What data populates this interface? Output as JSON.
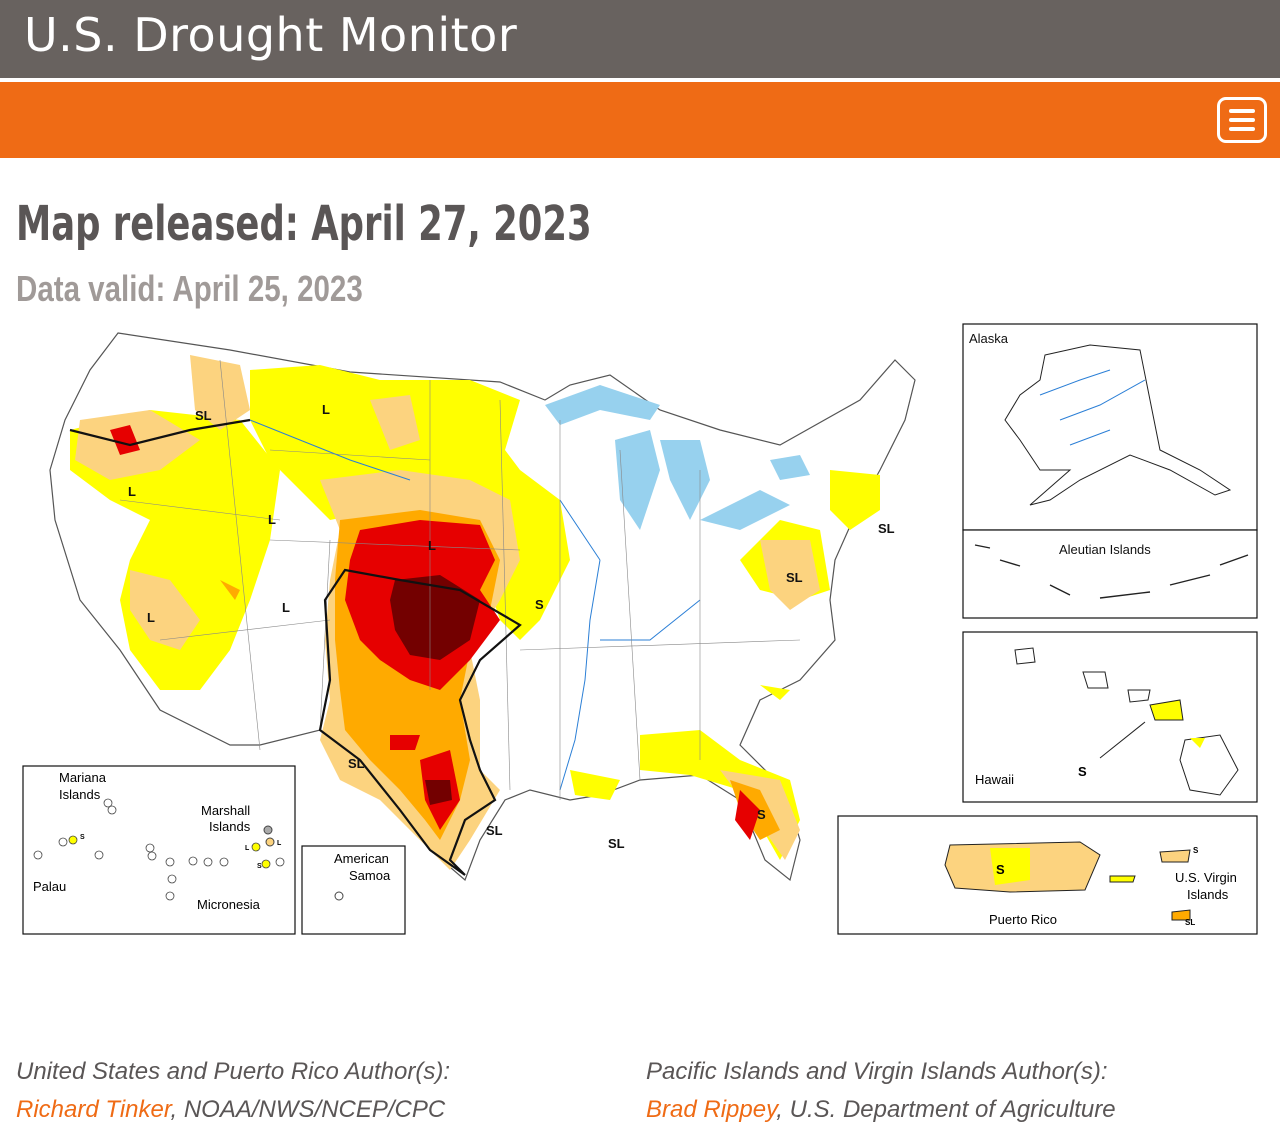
{
  "header": {
    "site_title": "U.S. Drought Monitor",
    "menu_icon": "hamburger-menu-icon",
    "colors": {
      "topbar": "#68625f",
      "navbar": "#ef6b15"
    }
  },
  "release": {
    "map_released": "Map released: April 27, 2023",
    "data_valid": "Data valid: April 25, 2023"
  },
  "map": {
    "legend_colors": {
      "D0": "#ffff00",
      "D1": "#fcd37f",
      "D2": "#ffaa00",
      "D3": "#e60000",
      "D4": "#730000",
      "water": "#97d1ee"
    },
    "impact_labels": [
      "SL",
      "L",
      "L",
      "L",
      "L",
      "L",
      "L",
      "S",
      "SL",
      "SL",
      "SL",
      "SL",
      "S",
      "SL"
    ],
    "insets": {
      "alaska": "Alaska",
      "aleutian": "Aleutian Islands",
      "hawaii": "Hawaii",
      "hawaii_label": "S",
      "puerto_rico": "Puerto Rico",
      "pr_label": "S",
      "usvi": [
        "U.S. Virgin",
        "Islands"
      ],
      "usvi_labels": [
        "S",
        "SL"
      ],
      "mariana": [
        "Mariana",
        "Islands"
      ],
      "marshall": [
        "Marshall",
        "Islands"
      ],
      "palau": "Palau",
      "micronesia": "Micronesia",
      "american_samoa": [
        "American",
        "Samoa"
      ],
      "pacific_labels": [
        "S",
        "L",
        "L",
        "S"
      ]
    }
  },
  "authors": {
    "us_pr_label": "United States and Puerto Rico Author(s):",
    "us_pr_name": "Richard Tinker",
    "us_pr_affiliation": ", NOAA/NWS/NCEP/CPC",
    "pacific_label": "Pacific Islands and Virgin Islands Author(s):",
    "pacific_name": "Brad Rippey",
    "pacific_affiliation": ", U.S. Department of Agriculture"
  }
}
